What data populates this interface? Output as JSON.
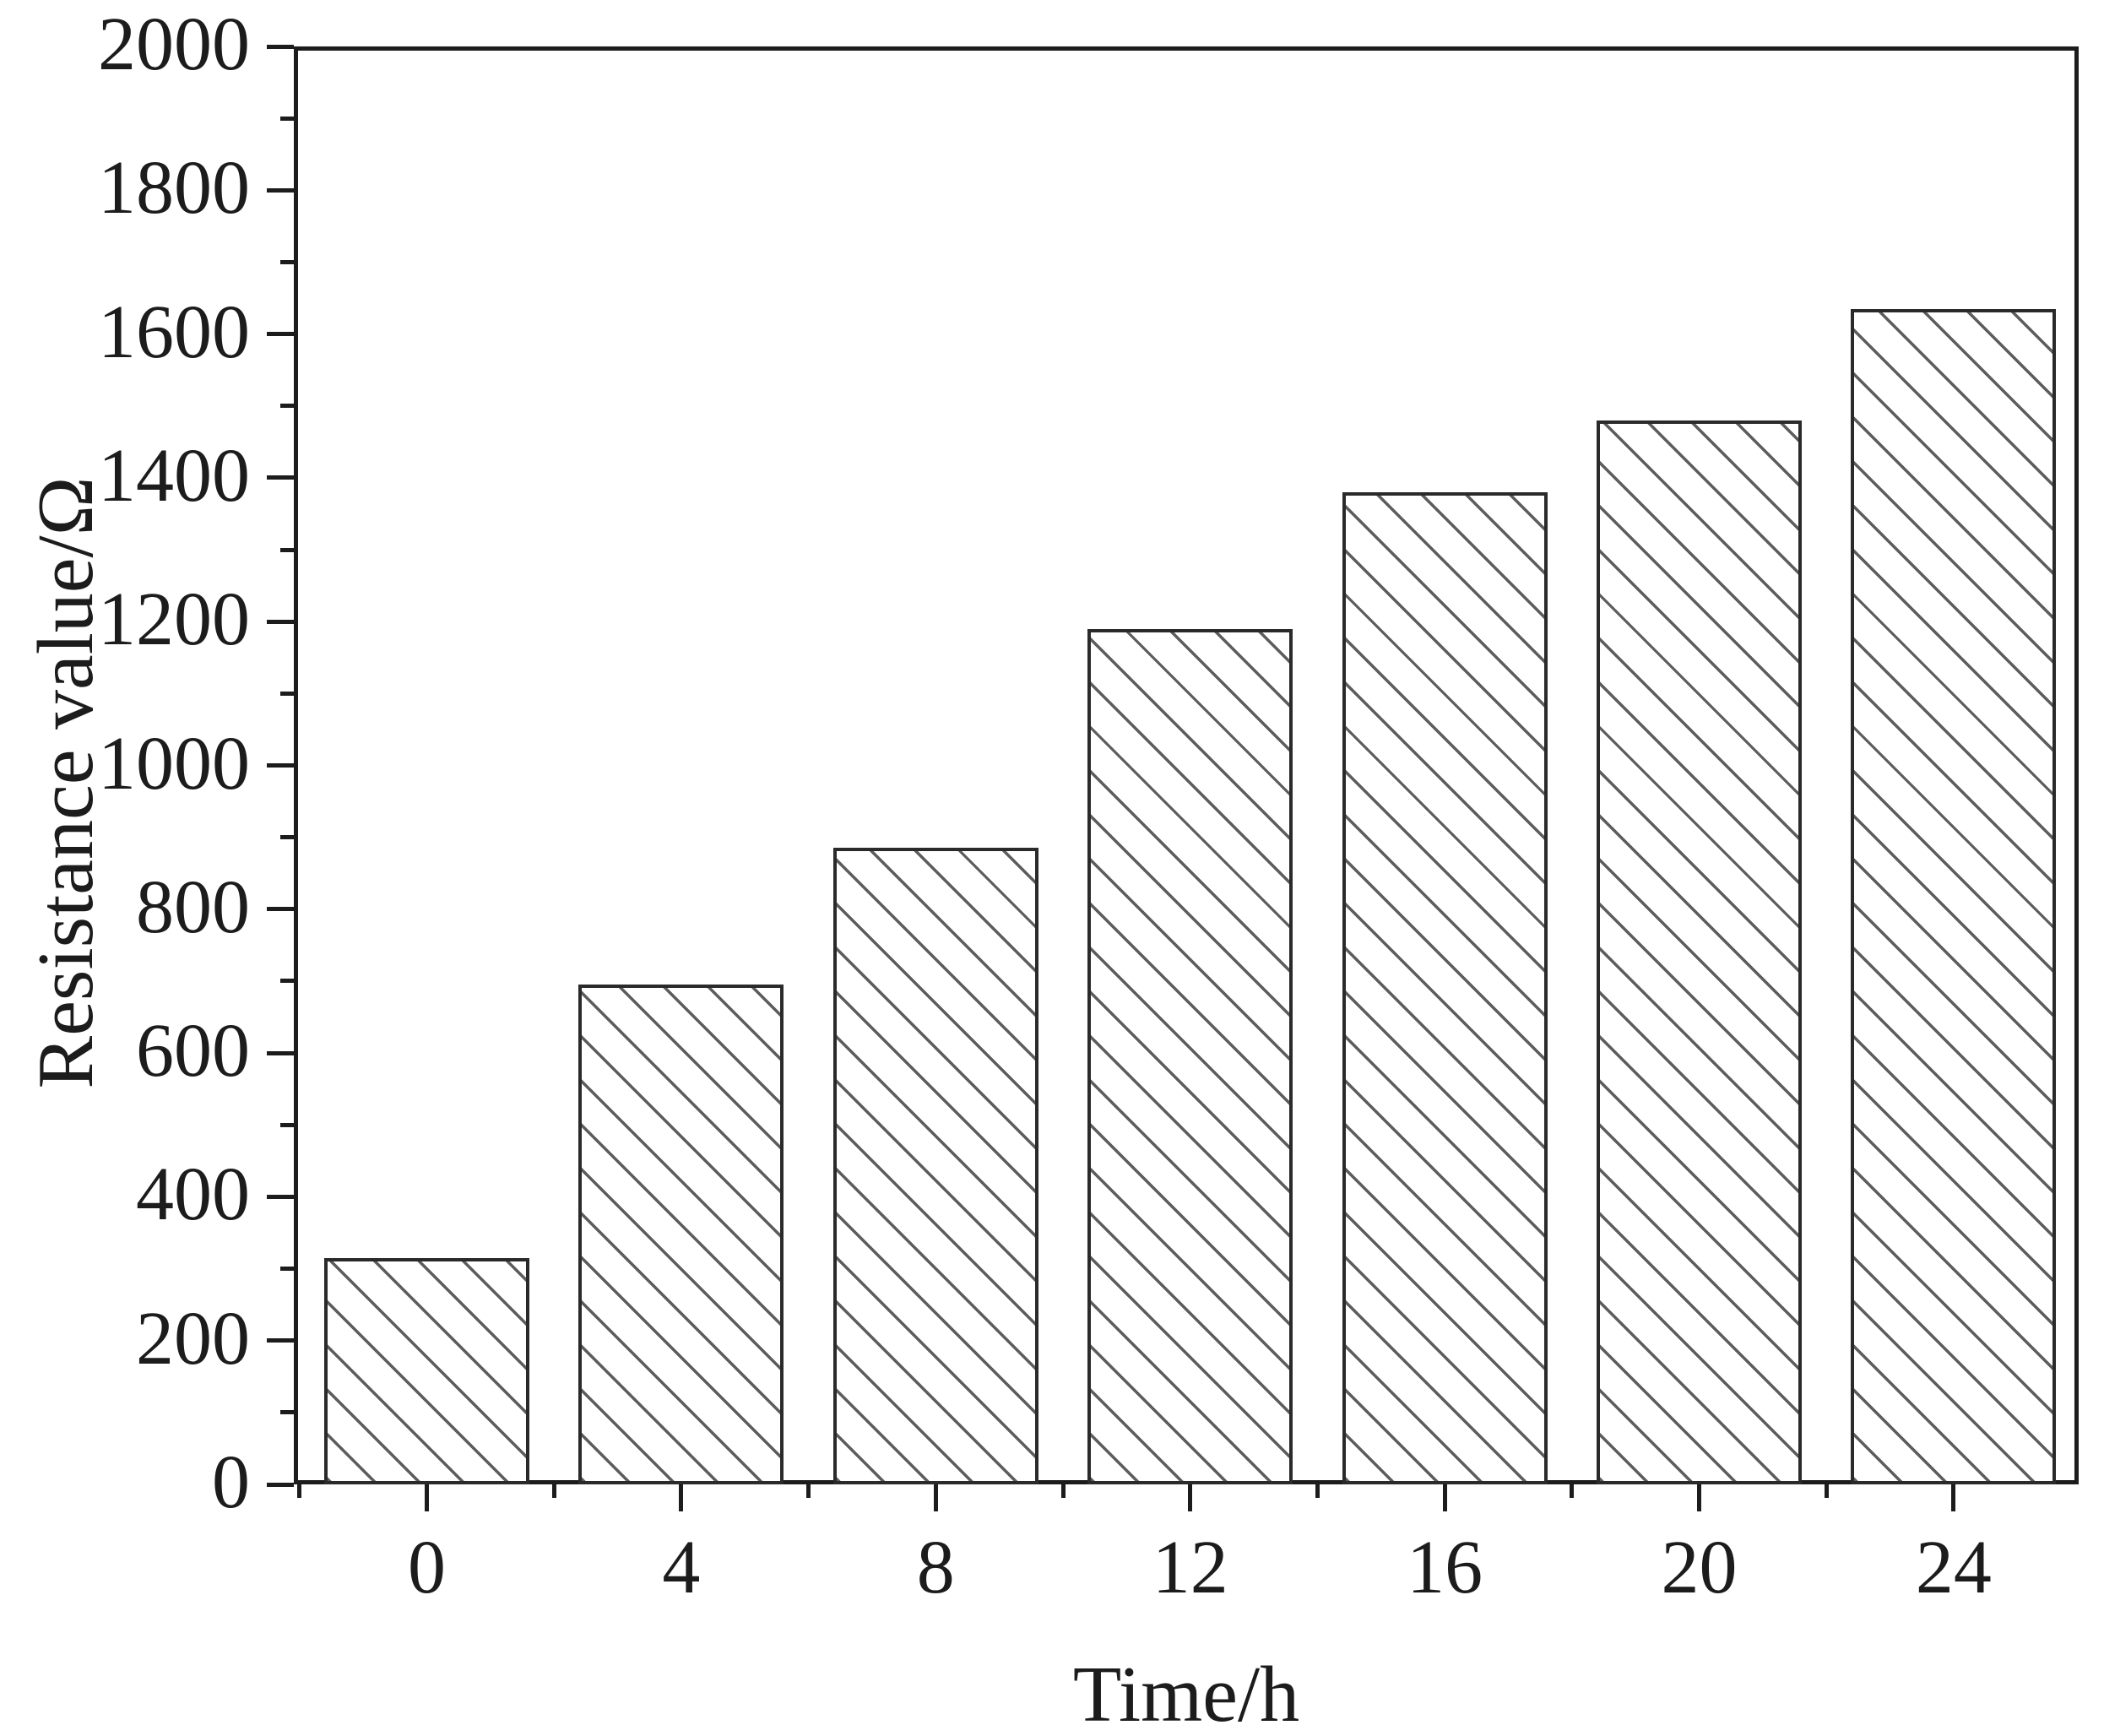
{
  "figure": {
    "background_color": "#ffffff",
    "frame_color": "#1c1c1c",
    "text_color": "#1c1c1c",
    "bar_fill_color": "#ffffff",
    "bar_edge_color": "#2a2a2a",
    "hatch_color": "#5d5d5d",
    "hatch_style": "diagonal-backslash"
  },
  "chart_data": {
    "type": "bar",
    "title": "",
    "categories": [
      "0",
      "4",
      "8",
      "12",
      "16",
      "20",
      "24"
    ],
    "values": [
      315,
      695,
      885,
      1190,
      1380,
      1480,
      1635
    ],
    "series_name": "Resistance value",
    "xlabel": "Time/h",
    "ylabel": "Resistance value/Ω",
    "ylim": [
      0,
      2000
    ],
    "ytick_major_step": 200,
    "ytick_minor_step": 100,
    "xtick_minor": "midpoints between categories",
    "grid": false,
    "legend": "none"
  },
  "y_tick_labels": [
    "0",
    "200",
    "400",
    "600",
    "800",
    "1000",
    "1200",
    "1400",
    "1600",
    "1800",
    "2000"
  ]
}
